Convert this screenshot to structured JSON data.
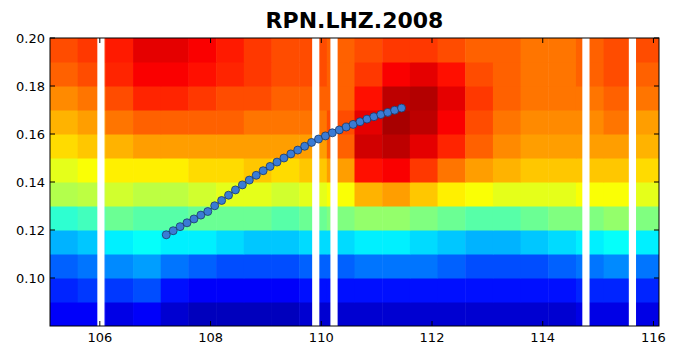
{
  "chart_data": {
    "type": "heatmap",
    "title": "RPN.LHZ.2008",
    "xlim": [
      105.1,
      116.1
    ],
    "ylim": [
      0.08,
      0.2
    ],
    "xticks": [
      106,
      108,
      110,
      112,
      114,
      116
    ],
    "yticks": [
      {
        "value": 0.1,
        "label": "0.10"
      },
      0.12,
      0.14,
      0.16,
      0.18,
      {
        "value": 0.2,
        "label": "0.20"
      }
    ],
    "xbins": [
      105.1,
      105.6,
      106.1,
      106.6,
      107.1,
      107.6,
      108.1,
      108.6,
      109.1,
      109.6,
      110.1,
      110.6,
      111.1,
      111.6,
      112.1,
      112.6,
      113.1,
      113.6,
      114.1,
      114.6,
      115.1,
      115.6,
      116.1
    ],
    "ybins": [
      0.08,
      0.09,
      0.1,
      0.11,
      0.12,
      0.13,
      0.14,
      0.15,
      0.16,
      0.17,
      0.18,
      0.19,
      0.2
    ],
    "color_range": [
      0,
      100
    ],
    "cells": [
      [
        12,
        12,
        10,
        12,
        8,
        6,
        6,
        6,
        6,
        8,
        8,
        8,
        8,
        8,
        8,
        8,
        8,
        8,
        8,
        10,
        10,
        10
      ],
      [
        16,
        18,
        18,
        20,
        14,
        12,
        12,
        12,
        12,
        14,
        14,
        14,
        14,
        14,
        14,
        14,
        14,
        14,
        14,
        16,
        16,
        16
      ],
      [
        22,
        24,
        26,
        28,
        24,
        22,
        20,
        20,
        20,
        22,
        22,
        24,
        24,
        24,
        22,
        20,
        20,
        20,
        22,
        24,
        26,
        24
      ],
      [
        30,
        32,
        36,
        38,
        36,
        36,
        34,
        32,
        32,
        34,
        34,
        36,
        36,
        34,
        32,
        30,
        30,
        32,
        34,
        36,
        38,
        36
      ],
      [
        42,
        44,
        48,
        46,
        46,
        48,
        48,
        48,
        46,
        48,
        50,
        52,
        52,
        50,
        48,
        46,
        46,
        48,
        50,
        50,
        52,
        50
      ],
      [
        55,
        56,
        58,
        56,
        56,
        58,
        60,
        60,
        58,
        60,
        62,
        70,
        72,
        68,
        64,
        62,
        60,
        60,
        60,
        62,
        62,
        60
      ],
      [
        60,
        62,
        64,
        64,
        64,
        66,
        66,
        68,
        66,
        68,
        72,
        86,
        88,
        82,
        76,
        72,
        70,
        68,
        68,
        68,
        68,
        66
      ],
      [
        66,
        68,
        70,
        72,
        72,
        72,
        72,
        72,
        72,
        72,
        78,
        92,
        94,
        90,
        84,
        78,
        74,
        72,
        72,
        72,
        72,
        70
      ],
      [
        70,
        72,
        76,
        78,
        78,
        78,
        78,
        76,
        76,
        76,
        80,
        90,
        96,
        94,
        88,
        80,
        76,
        74,
        74,
        74,
        76,
        72
      ],
      [
        74,
        76,
        80,
        84,
        84,
        82,
        80,
        80,
        78,
        78,
        78,
        86,
        94,
        95,
        90,
        82,
        78,
        76,
        76,
        76,
        78,
        76
      ],
      [
        78,
        80,
        84,
        88,
        88,
        86,
        84,
        82,
        80,
        80,
        78,
        82,
        88,
        90,
        86,
        80,
        78,
        76,
        76,
        78,
        80,
        78
      ],
      [
        80,
        82,
        85,
        90,
        90,
        88,
        85,
        82,
        80,
        80,
        78,
        80,
        82,
        82,
        80,
        78,
        78,
        76,
        76,
        78,
        80,
        80
      ]
    ],
    "gaps": [
      106.02,
      109.9,
      110.23,
      114.78,
      115.62
    ],
    "series": [
      {
        "type": "line",
        "marker": "circle",
        "color": "#3a7bd5",
        "x": [
          107.2,
          107.325,
          107.45,
          107.575,
          107.7,
          107.825,
          107.95,
          108.075,
          108.2,
          108.325,
          108.45,
          108.575,
          108.7,
          108.825,
          108.95,
          109.075,
          109.2,
          109.325,
          109.45,
          109.575,
          109.7,
          109.825,
          109.95,
          110.075,
          110.2,
          110.325,
          110.45,
          110.575,
          110.7,
          110.825,
          110.95,
          111.075,
          111.2,
          111.325,
          111.45
        ],
        "values": [
          0.118,
          0.1197,
          0.1214,
          0.123,
          0.1246,
          0.1262,
          0.1277,
          0.1301,
          0.1323,
          0.1345,
          0.1367,
          0.1388,
          0.1408,
          0.1428,
          0.1447,
          0.1465,
          0.1483,
          0.15,
          0.1517,
          0.1533,
          0.1549,
          0.1565,
          0.1579,
          0.1592,
          0.1605,
          0.1617,
          0.1629,
          0.164,
          0.1651,
          0.1662,
          0.1672,
          0.1681,
          0.169,
          0.1699,
          0.1708
        ]
      }
    ]
  }
}
